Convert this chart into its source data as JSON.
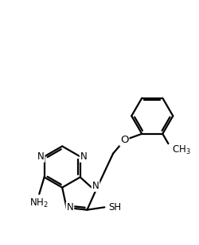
{
  "background_color": "#ffffff",
  "line_color": "#000000",
  "line_width": 1.6,
  "font_size": 8.5,
  "figsize": [
    2.5,
    3.09
  ],
  "dpi": 100,
  "xlim": [
    -4.0,
    5.5
  ],
  "ylim": [
    -3.2,
    6.8
  ]
}
